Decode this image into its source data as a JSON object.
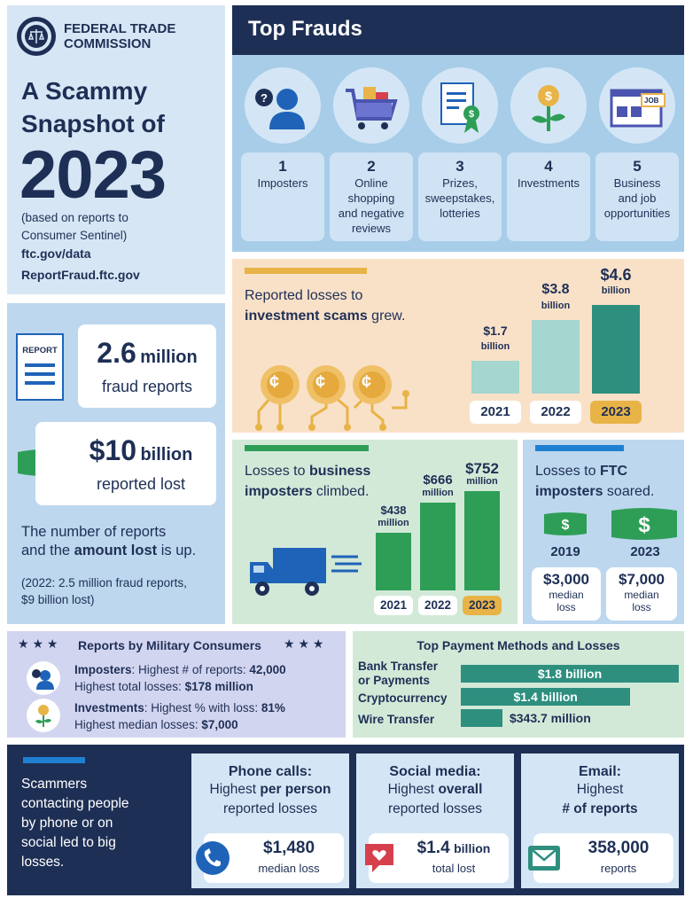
{
  "header": {
    "agency_line1": "FEDERAL TRADE",
    "agency_line2": "COMMISSION",
    "title_line1": "A Scammy",
    "title_line2": "Snapshot of",
    "year": "2023",
    "note_line1": "(based on reports to",
    "note_line2": "Consumer Sentinel)",
    "link1": "ftc.gov/data",
    "link2": "ReportFraud.ftc.gov"
  },
  "reports": {
    "report_icon_label": "REPORT",
    "count_value": "2.6",
    "count_unit": "million",
    "count_label": "fraud reports",
    "lost_value": "$10",
    "lost_unit": "billion",
    "lost_label": "reported lost",
    "summary_line1": "The number of reports",
    "summary_line2_pre": "and the ",
    "summary_line2_bold": "amount lost",
    "summary_line2_post": " is up.",
    "prior_line1": "(2022: 2.5 million fraud reports,",
    "prior_line2": "$9 billion lost)"
  },
  "top_frauds": {
    "title": "Top Frauds",
    "items": [
      {
        "rank": "1",
        "line1": "Imposters",
        "line2": "",
        "line3": "",
        "line4": ""
      },
      {
        "rank": "2",
        "line1": "Online",
        "line2": "shopping",
        "line3": "and negative",
        "line4": "reviews"
      },
      {
        "rank": "3",
        "line1": "Prizes,",
        "line2": "sweepstakes,",
        "line3": "lotteries",
        "line4": ""
      },
      {
        "rank": "4",
        "line1": "Investments",
        "line2": "",
        "line3": "",
        "line4": ""
      },
      {
        "rank": "5",
        "line1": "Business",
        "line2": "and job",
        "line3": "opportunities",
        "line4": ""
      }
    ],
    "job_icon_text": "JOB"
  },
  "investment": {
    "headline_line1": "Reported losses to",
    "headline_bold": "investment scams",
    "headline_tail": " grew.",
    "coin_symbol": "¢",
    "colors": {
      "bar_old": "#a5d6cf",
      "bar_new": "#2e8f7f",
      "highlight": "#e8b347"
    }
  },
  "business": {
    "headline_pre": "Losses to ",
    "headline_bold1": "business",
    "headline_bold2": "imposters",
    "headline_tail": " climbed."
  },
  "ftc_imposters": {
    "headline_pre": "Losses to ",
    "headline_bold1": "FTC",
    "headline_bold2": "imposters",
    "headline_tail": " soared.",
    "year_a": "2019",
    "year_b": "2023",
    "value_a": "$3,000",
    "value_b": "$7,000",
    "median_label": "median",
    "loss_label": "loss"
  },
  "military": {
    "title": "Reports by Military Consumers",
    "star": "★ ★ ★",
    "imposters_label": "Imposters",
    "imposters_text": ": Highest # of reports: ",
    "imposters_value": "42,000",
    "imposters_loss_text": "Highest total losses: ",
    "imposters_loss_value": "$178 million",
    "invest_label": "Investments",
    "invest_text": ": Highest % with loss: ",
    "invest_value": "81%",
    "invest_loss_text": "Highest median losses: ",
    "invest_loss_value": "$7,000"
  },
  "payment": {
    "title": "Top Payment Methods and Losses"
  },
  "contact": {
    "intro_line1": "Scammers",
    "intro_line2": "contacting people",
    "intro_line3": "by phone or on",
    "intro_line4": "social led to big",
    "intro_line5": "losses.",
    "phone_title": "Phone calls:",
    "phone_sub_pre": "Highest ",
    "phone_sub_bold": "per person",
    "phone_sub_line2": "reported losses",
    "phone_value": "$1,480",
    "phone_value_label": "median loss",
    "social_title": "Social media:",
    "social_sub_pre": "Highest ",
    "social_sub_bold": "overall",
    "social_sub_line2": "reported losses",
    "social_value": "$1.4",
    "social_unit": "billion",
    "social_value_label": "total lost",
    "email_title": "Email:",
    "email_sub_line1": "Highest",
    "email_sub_bold": "# of reports",
    "email_value": "358,000",
    "email_value_label": "reports"
  },
  "chart_data": [
    {
      "type": "bar",
      "title": "Reported losses to investment scams grew.",
      "categories": [
        "2021",
        "2022",
        "2023"
      ],
      "values": [
        1.7,
        3.8,
        4.6
      ],
      "value_labels": [
        "$1.7",
        "$3.8",
        "$4.6"
      ],
      "unit_label": "billion"
    },
    {
      "type": "bar",
      "title": "Losses to business imposters climbed.",
      "categories": [
        "2021",
        "2022",
        "2023"
      ],
      "values": [
        438,
        666,
        752
      ],
      "value_labels": [
        "$438",
        "$666",
        "$752"
      ],
      "unit_label": "million"
    },
    {
      "type": "bar",
      "orientation": "horizontal",
      "title": "Top Payment Methods and Losses",
      "categories": [
        "Bank Transfer or Payments",
        "Cryptocurrency",
        "Wire Transfer"
      ],
      "category_line1": [
        "Bank Transfer",
        "Cryptocurrency",
        "Wire Transfer"
      ],
      "category_line2": [
        "or Payments",
        "",
        ""
      ],
      "values": [
        1800,
        1400,
        343.7
      ],
      "value_labels": [
        "$1.8 billion",
        "$1.4 billion",
        "$343.7 million"
      ]
    }
  ]
}
